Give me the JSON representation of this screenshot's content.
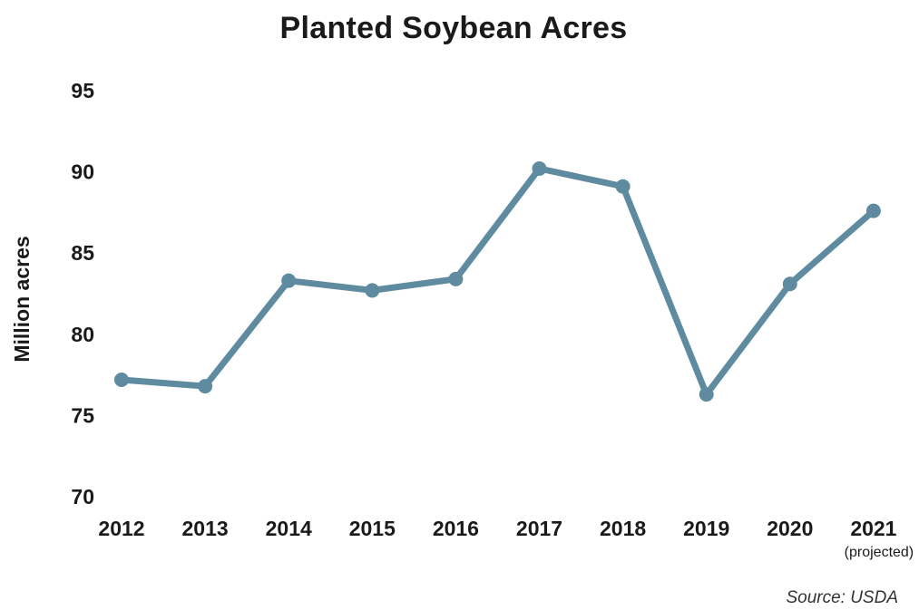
{
  "chart_data": {
    "type": "line",
    "title": "Planted Soybean Acres",
    "ylabel": "Million acres",
    "xlabel": "",
    "categories": [
      "2012",
      "2013",
      "2014",
      "2015",
      "2016",
      "2017",
      "2018",
      "2019",
      "2020",
      "2021"
    ],
    "category_notes": {
      "2021": "(projected)"
    },
    "series": [
      {
        "values": [
          77.2,
          76.8,
          83.3,
          82.7,
          83.4,
          90.2,
          89.1,
          76.3,
          83.1,
          87.6
        ]
      }
    ],
    "ylim": [
      70,
      95
    ],
    "yticks": [
      "70",
      "75",
      "80",
      "85",
      "90",
      "95"
    ],
    "grid": false,
    "legend": "none",
    "line_color": "#5f8ba1",
    "source": "Source: USDA"
  }
}
